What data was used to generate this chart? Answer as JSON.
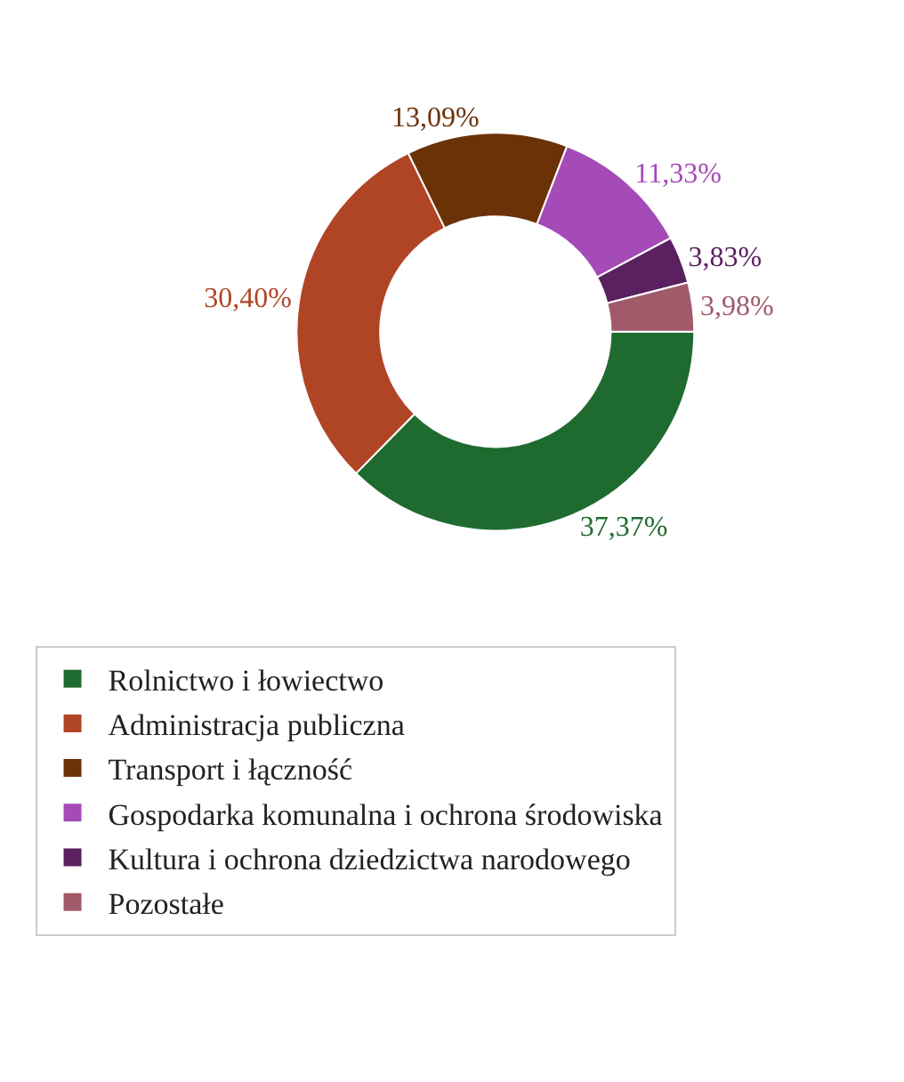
{
  "chart_data": {
    "type": "donut",
    "categories": [
      "Rolnictwo i łowiectwo",
      "Administracja publiczna",
      "Transport i łączność",
      "Gospodarka komunalna i ochrona środowiska",
      "Kultura i ochrona dziedzictwa narodowego",
      "Pozostałe"
    ],
    "values": [
      37.37,
      30.4,
      13.09,
      11.33,
      3.83,
      3.98
    ],
    "value_labels": [
      "37,37%",
      "30,40%",
      "13,09%",
      "11,33%",
      "3,83%",
      "3,98%"
    ],
    "colors": [
      "#1f6b2f",
      "#b04526",
      "#6b3208",
      "#a54bb8",
      "#5a2060",
      "#a05a6a"
    ],
    "legend": "bottom"
  }
}
